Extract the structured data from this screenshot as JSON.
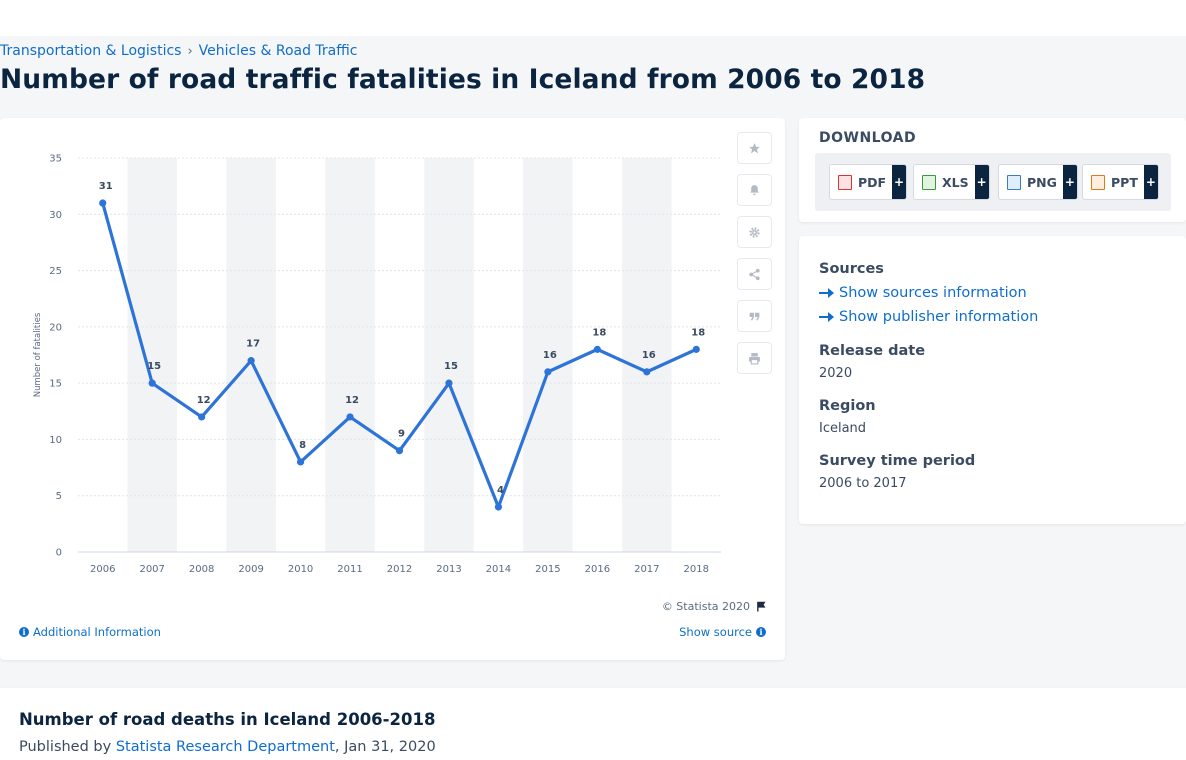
{
  "breadcrumb": {
    "items": [
      "Transportation & Logistics",
      "Vehicles & Road Traffic"
    ],
    "separator": "›"
  },
  "page_title": "Number of road traffic fatalities in Iceland from 2006 to 2018",
  "toolbar": {
    "icons": [
      "star-icon",
      "bell-icon",
      "gear-icon",
      "share-icon",
      "quote-icon",
      "print-icon"
    ]
  },
  "chart_footer": {
    "copyright": "© Statista 2020",
    "additional_info": "Additional Information",
    "show_source": "Show source"
  },
  "download": {
    "title": "DOWNLOAD",
    "formats": [
      "PDF",
      "XLS",
      "PNG",
      "PPT"
    ],
    "plus": "+"
  },
  "meta": {
    "sources_label": "Sources",
    "show_sources": "Show sources information",
    "show_publisher": "Show publisher information",
    "release_date_label": "Release date",
    "release_date": "2020",
    "region_label": "Region",
    "region": "Iceland",
    "survey_period_label": "Survey time period",
    "survey_period": "2006 to 2017"
  },
  "footer_card": {
    "title": "Number of road deaths in Iceland 2006-2018",
    "published_by": "Published by",
    "publisher": "Statista Research Department",
    "date": ", Jan 31, 2020"
  },
  "colors": {
    "line": "#2e74d8",
    "link": "#0f6ecd",
    "band": "#f2f3f5"
  },
  "chart_data": {
    "type": "line",
    "x": [
      "2006",
      "2007",
      "2008",
      "2009",
      "2010",
      "2011",
      "2012",
      "2013",
      "2014",
      "2015",
      "2016",
      "2017",
      "2018"
    ],
    "values": [
      31,
      15,
      12,
      17,
      8,
      12,
      9,
      15,
      4,
      16,
      18,
      16,
      18
    ],
    "ylabel": "Number of fatalities",
    "ylim": [
      0,
      35
    ],
    "yticks": [
      0,
      5,
      10,
      15,
      20,
      25,
      30,
      35
    ],
    "grid": true,
    "data_labels": true
  }
}
